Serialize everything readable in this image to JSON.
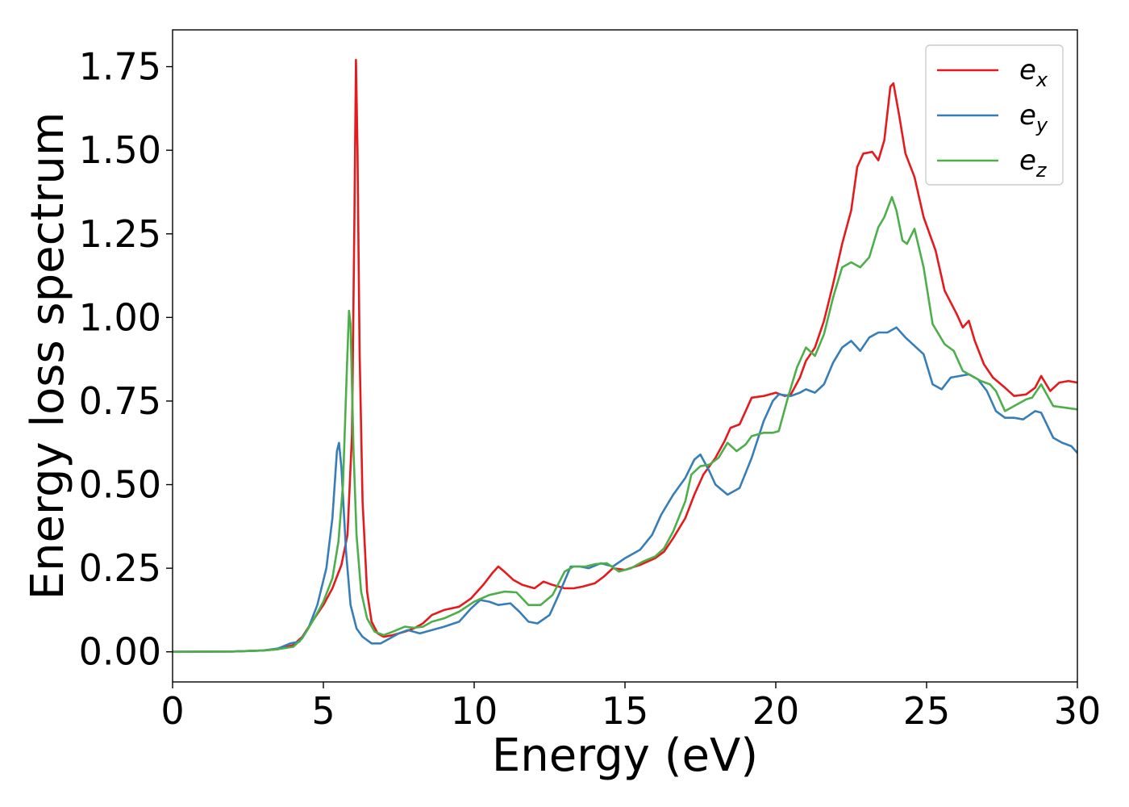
{
  "chart_data": {
    "type": "line",
    "title": "",
    "xlabel": "Energy (eV)",
    "ylabel": "Energy loss spectrum",
    "xlim": [
      0,
      30
    ],
    "ylim": [
      -0.09,
      1.86
    ],
    "x_ticks": [
      0,
      5,
      10,
      15,
      20,
      25,
      30
    ],
    "x_tick_labels": [
      "0",
      "5",
      "10",
      "15",
      "20",
      "25",
      "30"
    ],
    "y_ticks": [
      0,
      0.25,
      0.5,
      0.75,
      1.0,
      1.25,
      1.5,
      1.75
    ],
    "y_tick_labels": [
      "0.00",
      "0.25",
      "0.50",
      "0.75",
      "1.00",
      "1.25",
      "1.50",
      "1.75"
    ],
    "grid": false,
    "legend_position": "top-right",
    "series": [
      {
        "name": "e_x",
        "legend_base": "e",
        "legend_sub": "x",
        "color": "#e41a1c",
        "points": [
          [
            0,
            0
          ],
          [
            2,
            0.001
          ],
          [
            3,
            0.004
          ],
          [
            3.5,
            0.008
          ],
          [
            4,
            0.02
          ],
          [
            4.3,
            0.045
          ],
          [
            4.7,
            0.1
          ],
          [
            5,
            0.14
          ],
          [
            5.3,
            0.19
          ],
          [
            5.6,
            0.26
          ],
          [
            5.8,
            0.35
          ],
          [
            5.95,
            0.65
          ],
          [
            6.03,
            1.3
          ],
          [
            6.08,
            1.77
          ],
          [
            6.13,
            1.5
          ],
          [
            6.2,
            0.9
          ],
          [
            6.3,
            0.45
          ],
          [
            6.45,
            0.18
          ],
          [
            6.6,
            0.09
          ],
          [
            6.8,
            0.055
          ],
          [
            7,
            0.045
          ],
          [
            7.3,
            0.05
          ],
          [
            7.7,
            0.06
          ],
          [
            8,
            0.07
          ],
          [
            8.3,
            0.085
          ],
          [
            8.6,
            0.11
          ],
          [
            9,
            0.125
          ],
          [
            9.5,
            0.135
          ],
          [
            9.9,
            0.16
          ],
          [
            10.3,
            0.2
          ],
          [
            10.6,
            0.235
          ],
          [
            10.8,
            0.255
          ],
          [
            11,
            0.24
          ],
          [
            11.3,
            0.215
          ],
          [
            11.6,
            0.2
          ],
          [
            12,
            0.19
          ],
          [
            12.3,
            0.21
          ],
          [
            12.6,
            0.2
          ],
          [
            13,
            0.19
          ],
          [
            13.3,
            0.19
          ],
          [
            13.6,
            0.195
          ],
          [
            14,
            0.205
          ],
          [
            14.3,
            0.225
          ],
          [
            14.6,
            0.25
          ],
          [
            15,
            0.245
          ],
          [
            15.5,
            0.26
          ],
          [
            16,
            0.28
          ],
          [
            16.3,
            0.3
          ],
          [
            16.6,
            0.34
          ],
          [
            17,
            0.4
          ],
          [
            17.3,
            0.47
          ],
          [
            17.6,
            0.53
          ],
          [
            18,
            0.58
          ],
          [
            18.3,
            0.63
          ],
          [
            18.5,
            0.67
          ],
          [
            18.8,
            0.68
          ],
          [
            19,
            0.72
          ],
          [
            19.2,
            0.76
          ],
          [
            19.6,
            0.765
          ],
          [
            20,
            0.775
          ],
          [
            20.3,
            0.765
          ],
          [
            20.5,
            0.77
          ],
          [
            20.8,
            0.82
          ],
          [
            21,
            0.87
          ],
          [
            21.3,
            0.91
          ],
          [
            21.6,
            0.99
          ],
          [
            21.9,
            1.1
          ],
          [
            22.2,
            1.22
          ],
          [
            22.5,
            1.32
          ],
          [
            22.7,
            1.45
          ],
          [
            22.9,
            1.49
          ],
          [
            23.2,
            1.495
          ],
          [
            23.4,
            1.47
          ],
          [
            23.6,
            1.53
          ],
          [
            23.8,
            1.69
          ],
          [
            23.9,
            1.7
          ],
          [
            24.1,
            1.6
          ],
          [
            24.3,
            1.49
          ],
          [
            24.6,
            1.42
          ],
          [
            24.9,
            1.3
          ],
          [
            25.3,
            1.2
          ],
          [
            25.6,
            1.08
          ],
          [
            26,
            1.01
          ],
          [
            26.2,
            0.97
          ],
          [
            26.4,
            0.99
          ],
          [
            26.6,
            0.93
          ],
          [
            26.9,
            0.86
          ],
          [
            27.2,
            0.82
          ],
          [
            27.6,
            0.79
          ],
          [
            27.9,
            0.765
          ],
          [
            28.3,
            0.77
          ],
          [
            28.6,
            0.79
          ],
          [
            28.8,
            0.825
          ],
          [
            29.1,
            0.78
          ],
          [
            29.4,
            0.805
          ],
          [
            29.7,
            0.81
          ],
          [
            30,
            0.805
          ]
        ]
      },
      {
        "name": "e_y",
        "legend_base": "e",
        "legend_sub": "y",
        "color": "#377eb8",
        "points": [
          [
            0,
            0
          ],
          [
            2,
            0.001
          ],
          [
            3,
            0.004
          ],
          [
            3.5,
            0.01
          ],
          [
            3.9,
            0.025
          ],
          [
            4.2,
            0.03
          ],
          [
            4.5,
            0.07
          ],
          [
            4.8,
            0.14
          ],
          [
            5.1,
            0.25
          ],
          [
            5.3,
            0.4
          ],
          [
            5.45,
            0.6
          ],
          [
            5.52,
            0.625
          ],
          [
            5.6,
            0.55
          ],
          [
            5.75,
            0.3
          ],
          [
            5.9,
            0.14
          ],
          [
            6.1,
            0.07
          ],
          [
            6.3,
            0.045
          ],
          [
            6.6,
            0.025
          ],
          [
            6.9,
            0.025
          ],
          [
            7.2,
            0.04
          ],
          [
            7.5,
            0.055
          ],
          [
            7.8,
            0.065
          ],
          [
            8.2,
            0.055
          ],
          [
            8.6,
            0.065
          ],
          [
            9,
            0.075
          ],
          [
            9.5,
            0.09
          ],
          [
            9.9,
            0.13
          ],
          [
            10.2,
            0.155
          ],
          [
            10.5,
            0.15
          ],
          [
            10.8,
            0.14
          ],
          [
            11.2,
            0.145
          ],
          [
            11.5,
            0.12
          ],
          [
            11.8,
            0.09
          ],
          [
            12.1,
            0.085
          ],
          [
            12.5,
            0.11
          ],
          [
            12.8,
            0.17
          ],
          [
            13.2,
            0.255
          ],
          [
            13.5,
            0.255
          ],
          [
            13.8,
            0.25
          ],
          [
            14.2,
            0.265
          ],
          [
            14.6,
            0.255
          ],
          [
            15,
            0.28
          ],
          [
            15.5,
            0.305
          ],
          [
            15.9,
            0.35
          ],
          [
            16.2,
            0.41
          ],
          [
            16.6,
            0.47
          ],
          [
            17,
            0.52
          ],
          [
            17.3,
            0.575
          ],
          [
            17.5,
            0.59
          ],
          [
            17.8,
            0.54
          ],
          [
            18,
            0.5
          ],
          [
            18.4,
            0.47
          ],
          [
            18.8,
            0.49
          ],
          [
            19.2,
            0.58
          ],
          [
            19.6,
            0.69
          ],
          [
            19.9,
            0.75
          ],
          [
            20.1,
            0.77
          ],
          [
            20.5,
            0.765
          ],
          [
            20.8,
            0.775
          ],
          [
            21,
            0.785
          ],
          [
            21.3,
            0.775
          ],
          [
            21.6,
            0.8
          ],
          [
            21.9,
            0.865
          ],
          [
            22.2,
            0.91
          ],
          [
            22.5,
            0.93
          ],
          [
            22.8,
            0.9
          ],
          [
            23.1,
            0.94
          ],
          [
            23.4,
            0.955
          ],
          [
            23.7,
            0.955
          ],
          [
            24,
            0.97
          ],
          [
            24.3,
            0.94
          ],
          [
            24.6,
            0.915
          ],
          [
            24.9,
            0.89
          ],
          [
            25.2,
            0.8
          ],
          [
            25.5,
            0.785
          ],
          [
            25.8,
            0.82
          ],
          [
            26.1,
            0.825
          ],
          [
            26.4,
            0.83
          ],
          [
            26.7,
            0.815
          ],
          [
            27,
            0.78
          ],
          [
            27.3,
            0.72
          ],
          [
            27.6,
            0.7
          ],
          [
            27.9,
            0.7
          ],
          [
            28.2,
            0.695
          ],
          [
            28.6,
            0.72
          ],
          [
            28.8,
            0.715
          ],
          [
            29.2,
            0.64
          ],
          [
            29.5,
            0.625
          ],
          [
            29.8,
            0.615
          ],
          [
            30,
            0.595
          ]
        ]
      },
      {
        "name": "e_z",
        "legend_base": "e",
        "legend_sub": "z",
        "color": "#4daf4a",
        "points": [
          [
            0,
            0
          ],
          [
            2,
            0.001
          ],
          [
            3,
            0.004
          ],
          [
            3.5,
            0.008
          ],
          [
            4,
            0.015
          ],
          [
            4.3,
            0.04
          ],
          [
            4.7,
            0.1
          ],
          [
            5,
            0.15
          ],
          [
            5.3,
            0.22
          ],
          [
            5.5,
            0.33
          ],
          [
            5.65,
            0.5
          ],
          [
            5.78,
            0.85
          ],
          [
            5.85,
            1.02
          ],
          [
            5.9,
            0.98
          ],
          [
            6,
            0.6
          ],
          [
            6.1,
            0.35
          ],
          [
            6.25,
            0.18
          ],
          [
            6.45,
            0.1
          ],
          [
            6.7,
            0.06
          ],
          [
            7,
            0.05
          ],
          [
            7.3,
            0.06
          ],
          [
            7.7,
            0.075
          ],
          [
            8,
            0.072
          ],
          [
            8.3,
            0.075
          ],
          [
            8.6,
            0.09
          ],
          [
            9,
            0.1
          ],
          [
            9.5,
            0.12
          ],
          [
            10,
            0.15
          ],
          [
            10.5,
            0.17
          ],
          [
            11,
            0.18
          ],
          [
            11.4,
            0.178
          ],
          [
            11.8,
            0.14
          ],
          [
            12.2,
            0.14
          ],
          [
            12.6,
            0.17
          ],
          [
            13,
            0.24
          ],
          [
            13.3,
            0.255
          ],
          [
            13.7,
            0.255
          ],
          [
            14,
            0.262
          ],
          [
            14.4,
            0.265
          ],
          [
            14.8,
            0.24
          ],
          [
            15.2,
            0.25
          ],
          [
            15.6,
            0.27
          ],
          [
            16,
            0.285
          ],
          [
            16.3,
            0.31
          ],
          [
            16.6,
            0.36
          ],
          [
            17,
            0.45
          ],
          [
            17.2,
            0.53
          ],
          [
            17.5,
            0.555
          ],
          [
            17.8,
            0.56
          ],
          [
            18.1,
            0.58
          ],
          [
            18.4,
            0.625
          ],
          [
            18.7,
            0.6
          ],
          [
            19,
            0.62
          ],
          [
            19.2,
            0.645
          ],
          [
            19.6,
            0.655
          ],
          [
            19.9,
            0.655
          ],
          [
            20.1,
            0.66
          ],
          [
            20.4,
            0.76
          ],
          [
            20.7,
            0.85
          ],
          [
            21,
            0.91
          ],
          [
            21.3,
            0.885
          ],
          [
            21.6,
            0.95
          ],
          [
            21.9,
            1.06
          ],
          [
            22.2,
            1.15
          ],
          [
            22.5,
            1.165
          ],
          [
            22.8,
            1.15
          ],
          [
            23.1,
            1.18
          ],
          [
            23.4,
            1.27
          ],
          [
            23.6,
            1.3
          ],
          [
            23.85,
            1.36
          ],
          [
            24,
            1.32
          ],
          [
            24.2,
            1.23
          ],
          [
            24.35,
            1.22
          ],
          [
            24.6,
            1.265
          ],
          [
            24.9,
            1.15
          ],
          [
            25.2,
            0.98
          ],
          [
            25.6,
            0.92
          ],
          [
            25.9,
            0.9
          ],
          [
            26.2,
            0.84
          ],
          [
            26.5,
            0.825
          ],
          [
            26.8,
            0.81
          ],
          [
            27.1,
            0.8
          ],
          [
            27.3,
            0.78
          ],
          [
            27.6,
            0.72
          ],
          [
            28,
            0.74
          ],
          [
            28.3,
            0.755
          ],
          [
            28.5,
            0.76
          ],
          [
            28.8,
            0.8
          ],
          [
            29.2,
            0.735
          ],
          [
            29.6,
            0.73
          ],
          [
            30,
            0.725
          ]
        ]
      }
    ]
  }
}
